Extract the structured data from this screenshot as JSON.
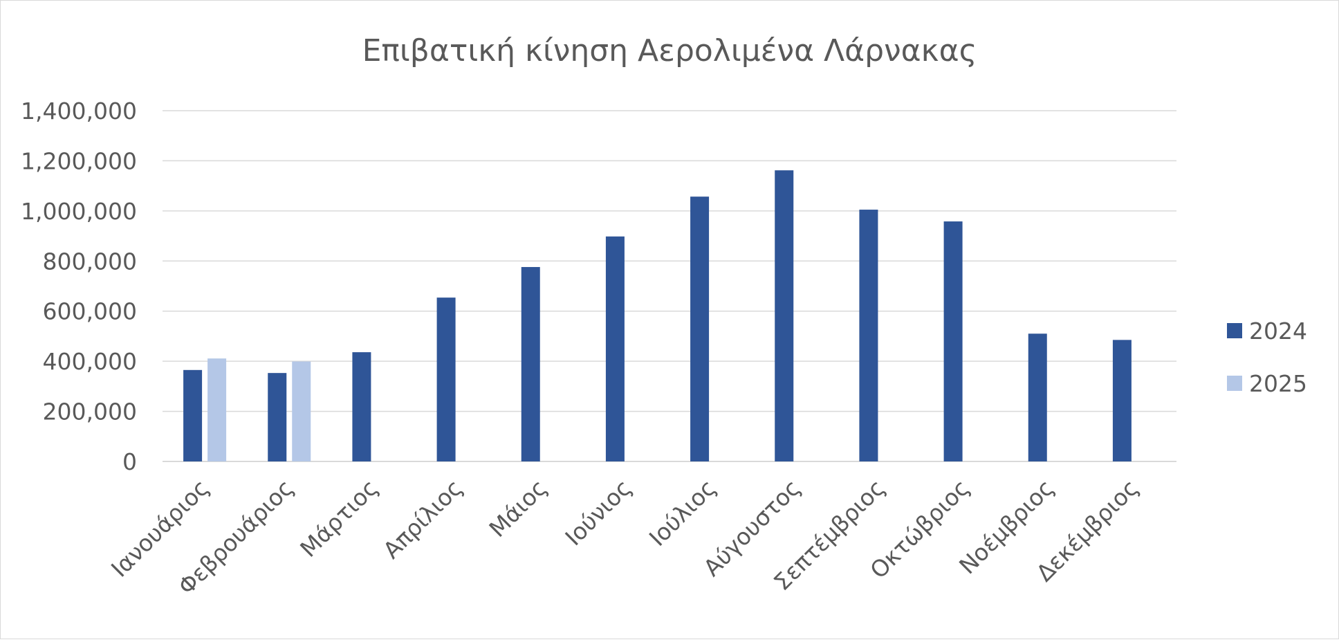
{
  "chart_data": {
    "type": "bar",
    "title": "Επιβατική κίνηση Αερολιμένα Λάρνακας",
    "xlabel": "",
    "ylabel": "",
    "categories": [
      "Ιανουάριος",
      "Φεβρουάριος",
      "Μάρτιος",
      "Απρίλιος",
      "Μάιος",
      "Ιούνιος",
      "Ιούλιος",
      "Αύγουστος",
      "Σεπτέμβριος",
      "Οκτώβριος",
      "Νοέμβριος",
      "Δεκέμβριος"
    ],
    "series": [
      {
        "name": "2024",
        "color": "#2f5597",
        "values": [
          365000,
          353000,
          436000,
          654000,
          776000,
          898000,
          1057000,
          1162000,
          1005000,
          958000,
          510000,
          485000
        ]
      },
      {
        "name": "2025",
        "color": "#b4c7e7",
        "values": [
          411000,
          399000,
          null,
          null,
          null,
          null,
          null,
          null,
          null,
          null,
          null,
          null
        ]
      }
    ],
    "ylim": [
      0,
      1400000
    ],
    "yticks": [
      0,
      200000,
      400000,
      600000,
      800000,
      1000000,
      1200000,
      1400000
    ],
    "ytick_labels": [
      "0",
      "200,000",
      "400,000",
      "600,000",
      "800,000",
      "1,000,000",
      "1,200,000",
      "1,400,000"
    ],
    "grid": true,
    "legend": "right"
  }
}
